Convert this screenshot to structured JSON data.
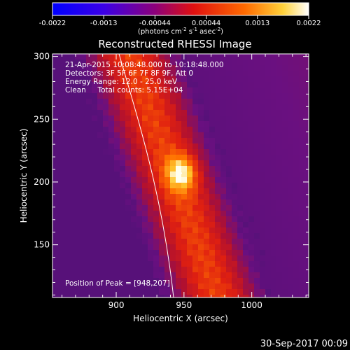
{
  "colorbar": {
    "tick_labels": [
      "-0.0022",
      "-0.0013",
      "-0.00044",
      "0.00044",
      "0.0013",
      "0.0022"
    ],
    "range": [
      -0.0022,
      0.0022
    ],
    "unit_label": "(photons cm",
    "unit_exp1": "-2",
    "unit_mid": " s",
    "unit_exp2": "-1",
    "unit_mid2": " asec",
    "unit_exp3": "-2",
    "unit_end": ")"
  },
  "chart_data": {
    "type": "heatmap",
    "title": "Reconstructed RHESSI Image",
    "xlabel": "Heliocentric X (arcsec)",
    "ylabel": "Heliocentric Y (arcsec)",
    "xlim": [
      853,
      1042
    ],
    "ylim": [
      108,
      302
    ],
    "x_ticks": [
      900,
      950,
      1000
    ],
    "y_ticks": [
      150,
      200,
      250,
      300
    ],
    "colormap": "fire (blue-purple-red-orange-yellow-white)",
    "peak": {
      "x": 948,
      "y": 207
    },
    "annotations": [
      "21-Apr-2015 10:08:48.000 to 10:18:48.000",
      "Detectors: 3F 5F 6F 7F 8F 9F, Att 0",
      "Energy Range: 12.0 - 25.0 keV",
      "Clean     Total counts: 5.15E+04"
    ],
    "peak_label": "Position of Peak = [948,207]"
  },
  "footer": {
    "date": "30-Sep-2017 00:09"
  },
  "colors": {
    "background": "#000000",
    "axis": "#ffffff",
    "limb": "#ffffff"
  }
}
